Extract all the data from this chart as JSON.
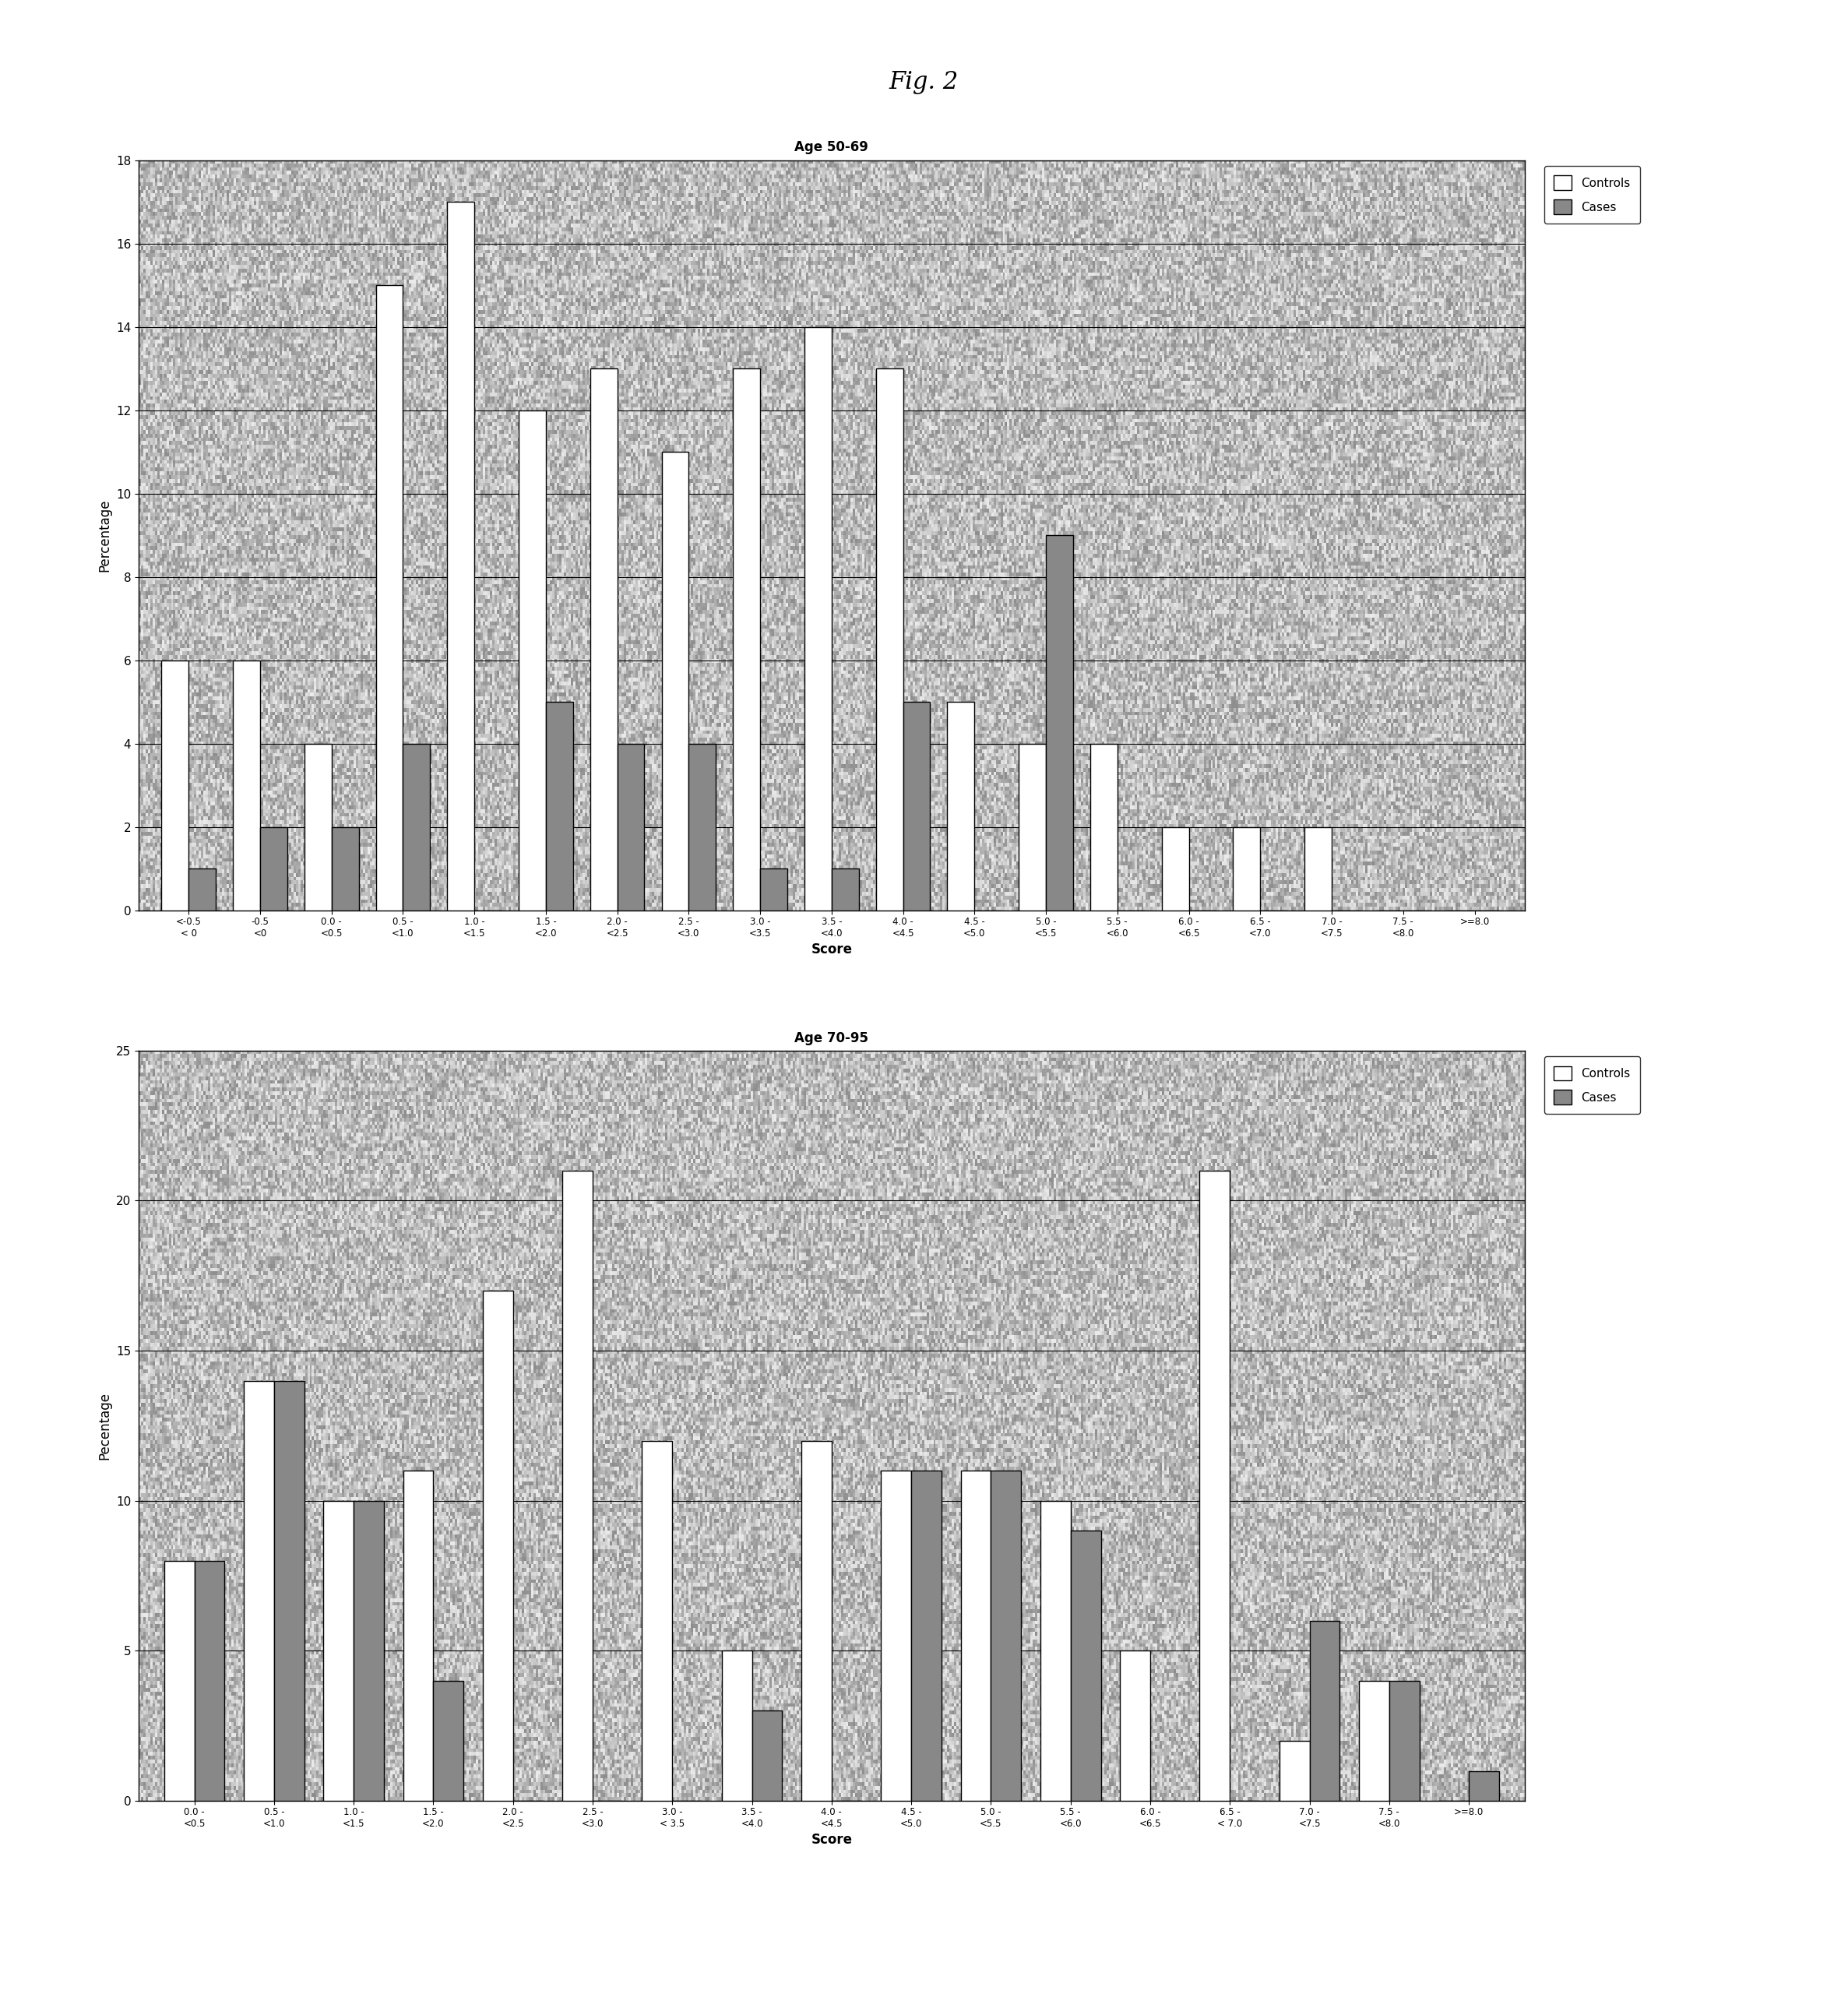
{
  "fig_title": "Fig. 2",
  "chart1": {
    "title": "Age 50-69",
    "ylabel": "Percentage",
    "xlabel": "Score",
    "ylim": [
      0,
      18
    ],
    "yticks": [
      0,
      2,
      4,
      6,
      8,
      10,
      12,
      14,
      16,
      18
    ],
    "categories": [
      "<-0.5\n< 0",
      "-0.5\n<0",
      "0.0 -\n<0.5",
      "0.5 -\n<1.0",
      "1.0 -\n<1.5",
      "1.5 -\n<2.0",
      "2.0 -\n<2.5",
      "2.5 -\n<3.0",
      "3.0 -\n<3.5",
      "3.5 -\n<4.0",
      "4.0 -\n<4.5",
      "4.5 -\n<5.0",
      "5.0 -\n<5.5",
      "5.5 -\n<6.0",
      "6.0 -\n<6.5",
      "6.5 -\n<7.0",
      "7.0 -\n<7.5",
      "7.5 -\n<8.0",
      ">=8.0"
    ],
    "controls": [
      6,
      6,
      4,
      15,
      17,
      12,
      13,
      11,
      13,
      14,
      13,
      5,
      4,
      4,
      2,
      2,
      2,
      0,
      0
    ],
    "cases": [
      1,
      2,
      2,
      4,
      0,
      5,
      4,
      4,
      1,
      1,
      5,
      0,
      9,
      0,
      0,
      0,
      0,
      0,
      0
    ]
  },
  "chart2": {
    "title": "Age 70-95",
    "ylabel": "Pecentage",
    "xlabel": "Score",
    "ylim": [
      0,
      25
    ],
    "yticks": [
      0,
      5,
      10,
      15,
      20,
      25
    ],
    "categories": [
      "0.0 -\n<0.5",
      "0.5 -\n<1.0",
      "1.0 -\n<1.5",
      "1.5 -\n<2.0",
      "2.0 -\n<2.5",
      "2.5 -\n<3.0",
      "3.0 -\n< 3.5",
      "3.5 -\n<4.0",
      "4.0 -\n<4.5",
      "4.5 -\n<5.0",
      "5.0 -\n<5.5",
      "5.5 -\n<6.0",
      "6.0 -\n<6.5",
      "6.5 -\n< 7.0",
      "7.0 -\n<7.5",
      "7.5 -\n<8.0",
      ">=8.0"
    ],
    "controls": [
      8,
      14,
      10,
      11,
      17,
      21,
      12,
      5,
      12,
      11,
      11,
      10,
      5,
      21,
      2,
      4,
      0
    ],
    "cases": [
      8,
      14,
      10,
      4,
      0,
      0,
      0,
      3,
      0,
      11,
      11,
      9,
      0,
      0,
      6,
      4,
      1
    ]
  }
}
